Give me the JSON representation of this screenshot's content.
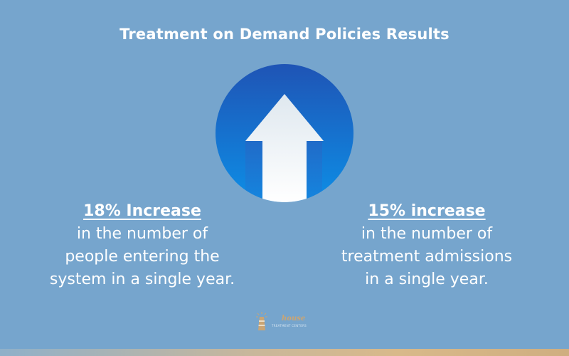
{
  "title": "Treatment on Demand Policies Results",
  "icons": {
    "main": "up-arrow-icon",
    "logo": "lighthouse-icon"
  },
  "colors": {
    "background": "#76a5cd",
    "circle_top": "#1f54b5",
    "circle_bottom": "#0d8ee6",
    "arrow": "#f1f5f8",
    "logo_accent": "#caa574"
  },
  "stats": [
    {
      "headline": "18% Increase",
      "lines": [
        "in the number of",
        "people entering the",
        "system in a single year."
      ]
    },
    {
      "headline": "15% increase",
      "lines": [
        "in the number of",
        "treatment admissions",
        "in a single year."
      ]
    }
  ],
  "logo": {
    "word": "house",
    "tagline": "TREATMENT CENTERS"
  }
}
